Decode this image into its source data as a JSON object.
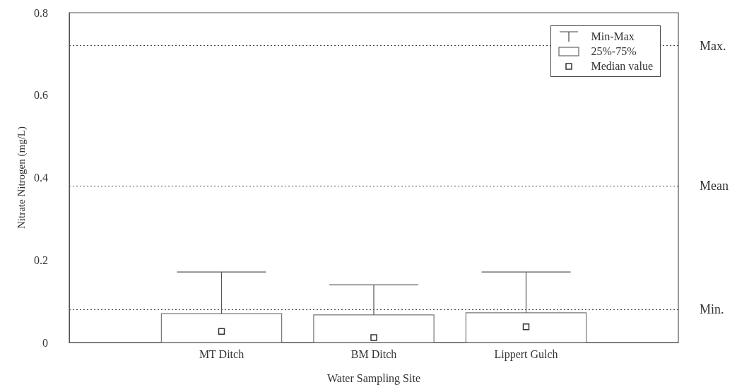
{
  "chart_data": {
    "type": "box",
    "xlabel": "Water Sampling Site",
    "ylabel": "Nitrate Nitrogen (mg/L)",
    "categories": [
      "MT Ditch",
      "BM Ditch",
      "Lippert Gulch"
    ],
    "boxes": [
      {
        "low": 0,
        "q1": 0,
        "median": 0.027,
        "q3": 0.07,
        "high": 0.171
      },
      {
        "low": 0,
        "q1": 0,
        "median": 0.012,
        "q3": 0.067,
        "high": 0.14
      },
      {
        "low": 0,
        "q1": 0,
        "median": 0.038,
        "q3": 0.072,
        "high": 0.171
      }
    ],
    "ylim": [
      0,
      0.8
    ],
    "yticks": [
      0,
      0.2,
      0.4,
      0.6,
      0.8
    ],
    "grid": false,
    "legend": "top right",
    "annotations": [
      "Min-Max",
      "25%-75%",
      "Median value"
    ],
    "ref_lines": [
      {
        "axis": "y",
        "value": 0.72,
        "label": "Max.",
        "line_style": "dotted"
      },
      {
        "axis": "y",
        "value": 0.38,
        "label": "Mean",
        "line_style": "dotted"
      },
      {
        "axis": "y",
        "value": 0.077,
        "label": "Min.",
        "line_style": "dotted"
      }
    ]
  }
}
